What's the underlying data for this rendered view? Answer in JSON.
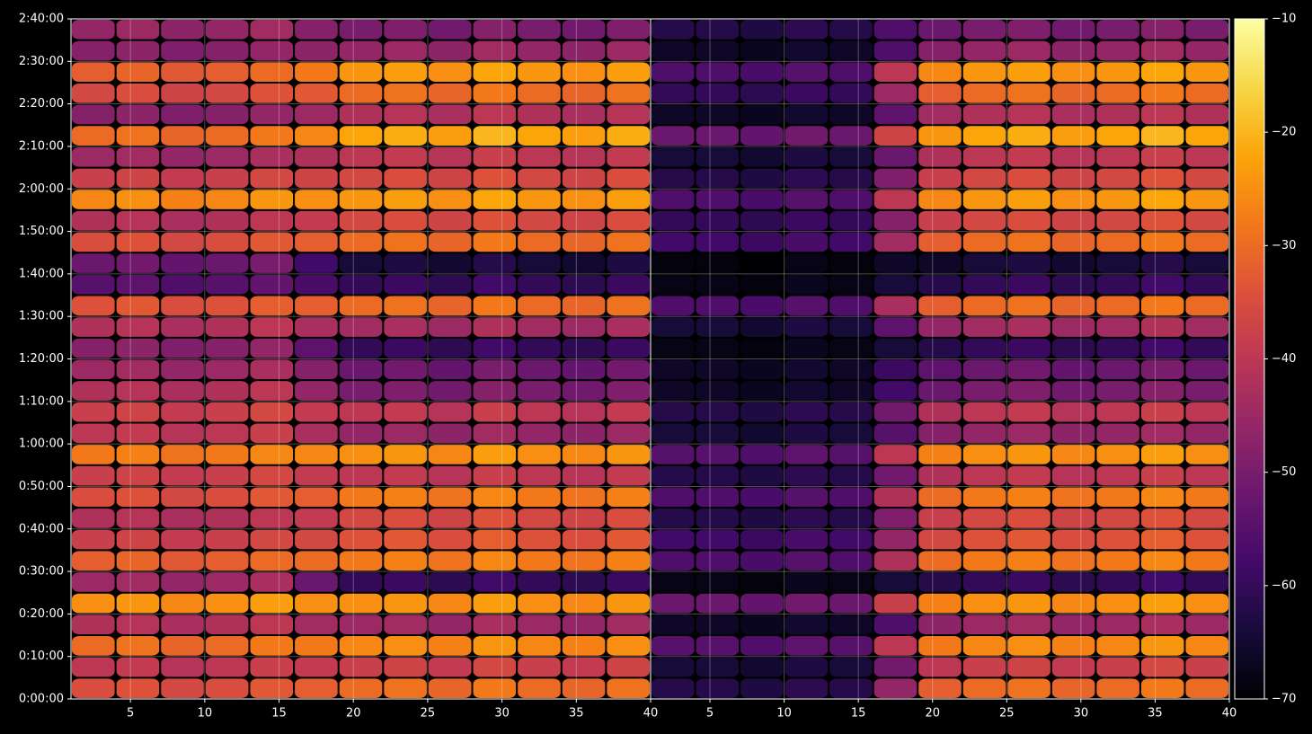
{
  "chart_data": {
    "type": "heatmap",
    "colormap": "inferno",
    "grid": true,
    "ylim": [
      0,
      9600
    ],
    "yticks": [
      {
        "value": 0,
        "label": "0:00:00"
      },
      {
        "value": 600,
        "label": "0:10:00"
      },
      {
        "value": 1200,
        "label": "0:20:00"
      },
      {
        "value": 1800,
        "label": "0:30:00"
      },
      {
        "value": 2400,
        "label": "0:40:00"
      },
      {
        "value": 3000,
        "label": "0:50:00"
      },
      {
        "value": 3600,
        "label": "1:00:00"
      },
      {
        "value": 4200,
        "label": "1:10:00"
      },
      {
        "value": 4800,
        "label": "1:20:00"
      },
      {
        "value": 5400,
        "label": "1:30:00"
      },
      {
        "value": 6000,
        "label": "1:40:00"
      },
      {
        "value": 6600,
        "label": "1:50:00"
      },
      {
        "value": 7200,
        "label": "2:00:00"
      },
      {
        "value": 7800,
        "label": "2:10:00"
      },
      {
        "value": 8400,
        "label": "2:20:00"
      },
      {
        "value": 9000,
        "label": "2:30:00"
      },
      {
        "value": 9600,
        "label": "2:40:00"
      }
    ],
    "ybins": [
      0,
      300,
      600,
      900,
      1200,
      1500,
      1800,
      2100,
      2400,
      2700,
      3000,
      3300,
      3600,
      3900,
      4200,
      4500,
      4800,
      5100,
      5400,
      5700,
      6000,
      6300,
      6600,
      6900,
      7200,
      7500,
      7800,
      8100,
      8400,
      8700,
      9000,
      9300,
      9600
    ],
    "colorbar": {
      "lim": [
        -70,
        -10
      ],
      "ticks": [
        {
          "value": -70,
          "label": "−70"
        },
        {
          "value": -60,
          "label": "−60"
        },
        {
          "value": -50,
          "label": "−50"
        },
        {
          "value": -40,
          "label": "−40"
        },
        {
          "value": -30,
          "label": "−30"
        },
        {
          "value": -20,
          "label": "−20"
        },
        {
          "value": -10,
          "label": "−10"
        }
      ]
    },
    "panels": [
      {
        "xlim": [
          1,
          40
        ],
        "xticks": [
          5,
          10,
          15,
          20,
          25,
          30,
          35,
          40
        ],
        "xbins": [
          1,
          4,
          7,
          10,
          13,
          16,
          19,
          22,
          25,
          28,
          31,
          34,
          37,
          40
        ],
        "values": [
          [
            -35,
            -34,
            -36,
            -35,
            -33,
            -32,
            -30,
            -29,
            -31,
            -28,
            -30,
            -31,
            -29
          ],
          [
            -40,
            -39,
            -41,
            -40,
            -38,
            -39,
            -38,
            -37,
            -39,
            -36,
            -38,
            -39,
            -37
          ],
          [
            -30,
            -29,
            -31,
            -30,
            -28,
            -28,
            -26,
            -25,
            -27,
            -24,
            -26,
            -27,
            -25
          ],
          [
            -42,
            -41,
            -43,
            -42,
            -40,
            -44,
            -45,
            -44,
            -46,
            -43,
            -45,
            -46,
            -44
          ],
          [
            -25,
            -24,
            -26,
            -25,
            -23,
            -25,
            -25,
            -24,
            -26,
            -23,
            -25,
            -26,
            -24
          ],
          [
            -45,
            -44,
            -46,
            -45,
            -43,
            -52,
            -60,
            -59,
            -61,
            -58,
            -60,
            -61,
            -59
          ],
          [
            -32,
            -31,
            -33,
            -32,
            -30,
            -30,
            -28,
            -27,
            -29,
            -26,
            -28,
            -29,
            -27
          ],
          [
            -38,
            -37,
            -39,
            -38,
            -36,
            -36,
            -34,
            -33,
            -35,
            -32,
            -34,
            -35,
            -33
          ],
          [
            -42,
            -41,
            -43,
            -42,
            -40,
            -39,
            -36,
            -35,
            -37,
            -34,
            -36,
            -37,
            -35
          ],
          [
            -35,
            -34,
            -36,
            -35,
            -33,
            -32,
            -28,
            -27,
            -29,
            -26,
            -28,
            -29,
            -27
          ],
          [
            -38,
            -37,
            -39,
            -38,
            -36,
            -39,
            -40,
            -39,
            -41,
            -38,
            -40,
            -41,
            -39
          ],
          [
            -28,
            -27,
            -29,
            -28,
            -26,
            -26,
            -25,
            -24,
            -26,
            -23,
            -25,
            -26,
            -24
          ],
          [
            -40,
            -39,
            -41,
            -40,
            -38,
            -43,
            -46,
            -45,
            -47,
            -44,
            -46,
            -47,
            -45
          ],
          [
            -38,
            -37,
            -39,
            -38,
            -36,
            -39,
            -40,
            -39,
            -41,
            -38,
            -40,
            -41,
            -39
          ],
          [
            -42,
            -41,
            -43,
            -42,
            -40,
            -46,
            -50,
            -49,
            -51,
            -48,
            -50,
            -51,
            -49
          ],
          [
            -45,
            -44,
            -46,
            -45,
            -43,
            -48,
            -52,
            -51,
            -53,
            -50,
            -52,
            -53,
            -51
          ],
          [
            -48,
            -47,
            -49,
            -48,
            -46,
            -54,
            -60,
            -59,
            -61,
            -58,
            -60,
            -61,
            -59
          ],
          [
            -42,
            -41,
            -43,
            -42,
            -40,
            -43,
            -44,
            -43,
            -45,
            -42,
            -44,
            -45,
            -43
          ],
          [
            -34,
            -33,
            -35,
            -34,
            -32,
            -32,
            -30,
            -29,
            -31,
            -28,
            -30,
            -31,
            -29
          ],
          [
            -55,
            -54,
            -56,
            -55,
            -53,
            -57,
            -60,
            -59,
            -61,
            -58,
            -60,
            -61,
            -59
          ],
          [
            -52,
            -51,
            -53,
            -52,
            -50,
            -58,
            -64,
            -63,
            -65,
            -62,
            -64,
            -65,
            -63
          ],
          [
            -35,
            -34,
            -36,
            -35,
            -33,
            -32,
            -30,
            -29,
            -31,
            -28,
            -30,
            -31,
            -29
          ],
          [
            -42,
            -41,
            -43,
            -42,
            -40,
            -39,
            -36,
            -35,
            -37,
            -34,
            -36,
            -37,
            -35
          ],
          [
            -26,
            -25,
            -27,
            -26,
            -24,
            -25,
            -24,
            -23,
            -25,
            -22,
            -24,
            -25,
            -23
          ],
          [
            -38,
            -37,
            -39,
            -38,
            -36,
            -37,
            -36,
            -35,
            -37,
            -34,
            -36,
            -37,
            -35
          ],
          [
            -45,
            -44,
            -46,
            -45,
            -43,
            -42,
            -40,
            -39,
            -41,
            -38,
            -40,
            -41,
            -39
          ],
          [
            -30,
            -29,
            -31,
            -30,
            -28,
            -26,
            -22,
            -21,
            -23,
            -20,
            -22,
            -23,
            -21
          ],
          [
            -48,
            -47,
            -49,
            -48,
            -46,
            -45,
            -42,
            -41,
            -43,
            -40,
            -42,
            -43,
            -41
          ],
          [
            -36,
            -35,
            -37,
            -36,
            -34,
            -33,
            -30,
            -29,
            -31,
            -28,
            -30,
            -31,
            -29
          ],
          [
            -32,
            -31,
            -33,
            -32,
            -30,
            -28,
            -24,
            -23,
            -25,
            -22,
            -24,
            -25,
            -23
          ],
          [
            -48,
            -47,
            -49,
            -48,
            -46,
            -47,
            -46,
            -45,
            -47,
            -44,
            -46,
            -47,
            -45
          ],
          [
            -46,
            -45,
            -47,
            -46,
            -44,
            -48,
            -50,
            -49,
            -51,
            -48,
            -50,
            -51,
            -49
          ]
        ]
      },
      {
        "xlim": [
          1,
          40
        ],
        "xticks": [
          5,
          10,
          15,
          20,
          25,
          30,
          35,
          40
        ],
        "xbins": [
          1,
          4,
          7,
          10,
          13,
          16,
          19,
          22,
          25,
          28,
          31,
          34,
          37,
          40
        ],
        "values": [
          [
            -62,
            -62,
            -63,
            -61,
            -62,
            -46,
            -32,
            -30,
            -29,
            -31,
            -30,
            -28,
            -30
          ],
          [
            -64,
            -64,
            -65,
            -63,
            -64,
            -51,
            -40,
            -38,
            -37,
            -39,
            -38,
            -36,
            -38
          ],
          [
            -55,
            -55,
            -56,
            -54,
            -55,
            -40,
            -28,
            -26,
            -25,
            -27,
            -26,
            -24,
            -26
          ],
          [
            -66,
            -66,
            -67,
            -65,
            -66,
            -56,
            -47,
            -45,
            -44,
            -46,
            -45,
            -43,
            -45
          ],
          [
            -52,
            -52,
            -53,
            -51,
            -52,
            -38,
            -27,
            -25,
            -24,
            -26,
            -25,
            -23,
            -25
          ],
          [
            -68,
            -68,
            -69,
            -67,
            -68,
            -64,
            -62,
            -60,
            -59,
            -61,
            -60,
            -58,
            -60
          ],
          [
            -56,
            -56,
            -57,
            -55,
            -56,
            -42,
            -30,
            -28,
            -27,
            -29,
            -28,
            -26,
            -28
          ],
          [
            -58,
            -58,
            -59,
            -57,
            -58,
            -46,
            -36,
            -34,
            -33,
            -35,
            -34,
            -32,
            -34
          ],
          [
            -62,
            -62,
            -63,
            -61,
            -62,
            -49,
            -38,
            -36,
            -35,
            -37,
            -36,
            -34,
            -36
          ],
          [
            -56,
            -56,
            -57,
            -55,
            -56,
            -42,
            -30,
            -28,
            -27,
            -29,
            -28,
            -26,
            -28
          ],
          [
            -62,
            -62,
            -63,
            -61,
            -62,
            -51,
            -42,
            -40,
            -39,
            -41,
            -40,
            -38,
            -40
          ],
          [
            -55,
            -55,
            -56,
            -54,
            -55,
            -40,
            -27,
            -25,
            -24,
            -26,
            -25,
            -23,
            -25
          ],
          [
            -64,
            -64,
            -65,
            -63,
            -64,
            -55,
            -48,
            -46,
            -45,
            -47,
            -46,
            -44,
            -46
          ],
          [
            -62,
            -62,
            -63,
            -61,
            -62,
            -51,
            -42,
            -40,
            -39,
            -41,
            -40,
            -38,
            -40
          ],
          [
            -66,
            -66,
            -67,
            -65,
            -66,
            -58,
            -52,
            -50,
            -49,
            -51,
            -50,
            -48,
            -50
          ],
          [
            -66,
            -66,
            -67,
            -65,
            -66,
            -59,
            -54,
            -52,
            -51,
            -53,
            -52,
            -50,
            -52
          ],
          [
            -68,
            -68,
            -69,
            -67,
            -68,
            -64,
            -62,
            -60,
            -59,
            -61,
            -60,
            -58,
            -60
          ],
          [
            -64,
            -64,
            -65,
            -63,
            -64,
            -54,
            -46,
            -44,
            -43,
            -45,
            -44,
            -42,
            -44
          ],
          [
            -56,
            -56,
            -57,
            -55,
            -56,
            -43,
            -32,
            -30,
            -29,
            -31,
            -30,
            -28,
            -30
          ],
          [
            -68,
            -68,
            -69,
            -67,
            -68,
            -64,
            -62,
            -60,
            -59,
            -61,
            -60,
            -58,
            -60
          ],
          [
            -69,
            -69,
            -70,
            -68,
            -69,
            -66,
            -66,
            -64,
            -63,
            -65,
            -64,
            -62,
            -64
          ],
          [
            -58,
            -58,
            -59,
            -57,
            -58,
            -44,
            -32,
            -30,
            -29,
            -31,
            -30,
            -28,
            -30
          ],
          [
            -60,
            -60,
            -61,
            -59,
            -60,
            -48,
            -38,
            -36,
            -35,
            -37,
            -36,
            -34,
            -36
          ],
          [
            -56,
            -56,
            -57,
            -55,
            -56,
            -40,
            -26,
            -24,
            -23,
            -25,
            -24,
            -22,
            -24
          ],
          [
            -62,
            -62,
            -63,
            -61,
            -62,
            -49,
            -38,
            -36,
            -35,
            -37,
            -36,
            -34,
            -36
          ],
          [
            -64,
            -64,
            -65,
            -63,
            -64,
            -52,
            -42,
            -40,
            -39,
            -41,
            -40,
            -38,
            -40
          ],
          [
            -52,
            -52,
            -53,
            -51,
            -52,
            -37,
            -24,
            -22,
            -21,
            -23,
            -22,
            -20,
            -22
          ],
          [
            -66,
            -66,
            -67,
            -65,
            -66,
            -54,
            -44,
            -42,
            -41,
            -43,
            -42,
            -40,
            -42
          ],
          [
            -60,
            -60,
            -61,
            -59,
            -60,
            -45,
            -32,
            -30,
            -29,
            -31,
            -30,
            -28,
            -30
          ],
          [
            -56,
            -56,
            -57,
            -55,
            -56,
            -40,
            -26,
            -24,
            -23,
            -25,
            -24,
            -22,
            -24
          ],
          [
            -66,
            -66,
            -67,
            -65,
            -66,
            -56,
            -48,
            -46,
            -45,
            -47,
            -46,
            -44,
            -46
          ],
          [
            -62,
            -62,
            -63,
            -61,
            -62,
            -56,
            -52,
            -50,
            -49,
            -51,
            -50,
            -48,
            -50
          ]
        ]
      }
    ]
  }
}
